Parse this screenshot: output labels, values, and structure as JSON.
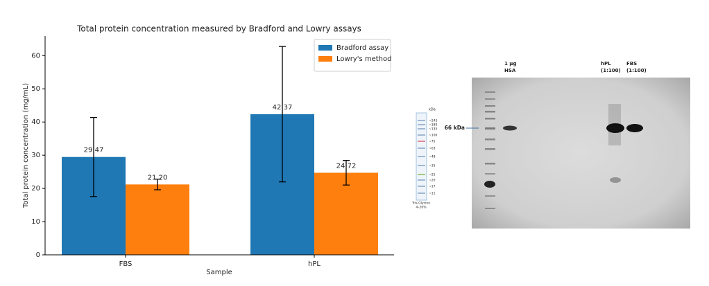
{
  "chart_data": {
    "type": "bar",
    "title": "Total protein concentration measured by Bradford and Lowry assays",
    "xlabel": "Sample",
    "ylabel": "Total protein concentration (mg/mL)",
    "categories": [
      "FBS",
      "hPL"
    ],
    "series": [
      {
        "name": "Bradford assay",
        "color": "#1f77b4",
        "values": [
          29.47,
          42.37
        ],
        "value_labels": [
          "29.47",
          "42.37"
        ],
        "errors": [
          11.9,
          20.4
        ]
      },
      {
        "name": "Lowry's method",
        "color": "#ff7f0e",
        "values": [
          21.2,
          24.72
        ],
        "value_labels": [
          "21.20",
          "24.72"
        ],
        "errors": [
          1.6,
          3.7
        ]
      }
    ],
    "ylim": [
      0,
      65.9
    ],
    "yticks": [
      0,
      10,
      20,
      30,
      40,
      50,
      60
    ],
    "legend": "upper right"
  },
  "gel": {
    "lanes": [
      {
        "line1": "1 µg",
        "line2": "HSA"
      },
      {
        "line1": "hPL",
        "line2": "(1:100)"
      },
      {
        "line1": "FBS",
        "line2": "(1:100)"
      }
    ],
    "marker_label": "66 kDa",
    "ladder": {
      "unit": "kDa",
      "sizes": [
        "~245",
        "~180",
        "~135",
        "~100",
        "~75",
        "~63",
        "~48",
        "~35",
        "~25",
        "~20",
        "~17",
        "~11"
      ],
      "gel_type": "Tris-Glycine",
      "gradient": "4–20%"
    }
  }
}
